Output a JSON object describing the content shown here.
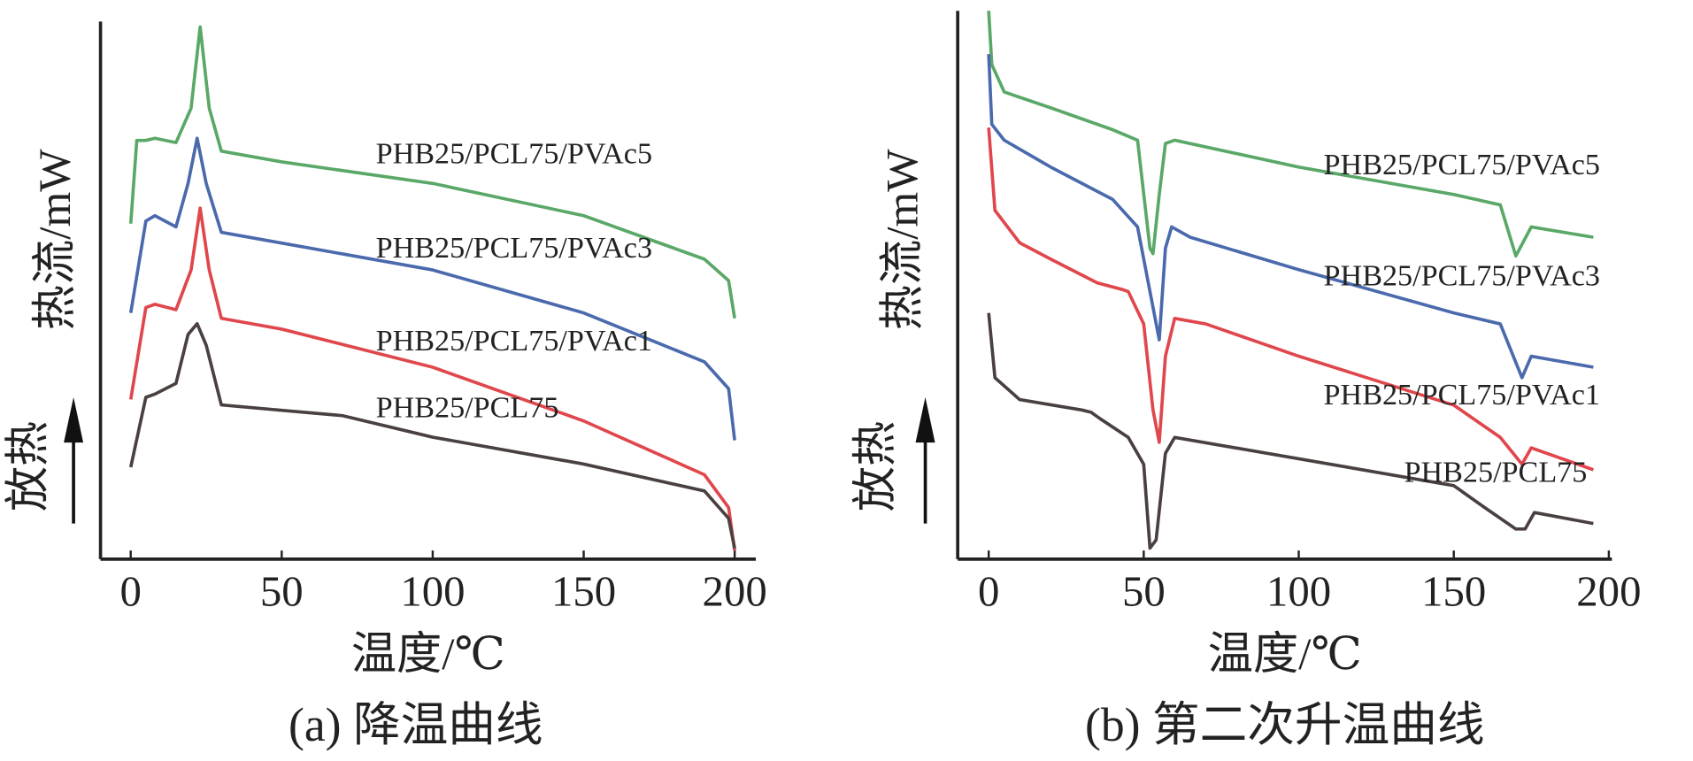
{
  "chart_data": [
    {
      "type": "line",
      "title": "(a) 降温曲线",
      "xlabel": "温度/℃",
      "ylabel": "热流/mW",
      "annotation": "放热",
      "xlim": [
        -10,
        207
      ],
      "ylim": [
        0,
        100
      ],
      "xticks": [
        0,
        50,
        100,
        150,
        200
      ],
      "series": [
        {
          "name": "PHB25/PCL75/PVAc5",
          "color": "#5aa867",
          "x": [
            0,
            2,
            5,
            8,
            15,
            20,
            23,
            26,
            30,
            50,
            100,
            150,
            190,
            198,
            200
          ],
          "values": [
            62.4,
            77.9,
            77.9,
            78.3,
            77.5,
            83.9,
            99.0,
            83.9,
            75.9,
            73.9,
            69.9,
            63.9,
            55.8,
            51.8,
            44.8
          ]
        },
        {
          "name": "PHB25/PCL75/PVAc3",
          "color": "#4a6aad",
          "x": [
            0,
            5,
            8,
            15,
            19,
            22,
            25,
            30,
            50,
            100,
            150,
            190,
            198,
            200
          ],
          "values": [
            45.8,
            62.9,
            63.9,
            61.8,
            69.9,
            78.3,
            69.9,
            60.8,
            58.8,
            53.8,
            45.8,
            36.7,
            31.7,
            22.1
          ]
        },
        {
          "name": "PHB25/PCL75/PVAc1",
          "color": "#e0474c",
          "x": [
            0,
            5,
            8,
            15,
            20,
            23,
            26,
            30,
            50,
            100,
            150,
            190,
            198,
            200
          ],
          "values": [
            29.7,
            46.8,
            47.4,
            46.4,
            53.8,
            65.3,
            53.8,
            44.8,
            42.8,
            35.7,
            25.7,
            15.7,
            9.6,
            1.6
          ]
        },
        {
          "name": "PHB25/PCL75",
          "color": "#4a4040",
          "x": [
            0,
            5,
            8,
            15,
            19,
            22,
            25,
            30,
            50,
            70,
            100,
            150,
            190,
            198,
            200
          ],
          "values": [
            17.1,
            30.1,
            30.7,
            32.7,
            41.8,
            43.8,
            39.8,
            28.7,
            27.7,
            26.7,
            22.7,
            17.7,
            12.7,
            7.6,
            2.0
          ]
        }
      ]
    },
    {
      "type": "line",
      "title": "(b) 第二次升温曲线",
      "xlabel": "温度/℃",
      "ylabel": "热流/mW",
      "annotation": "放热",
      "xlim": [
        -10,
        201
      ],
      "ylim": [
        0,
        100
      ],
      "xticks": [
        0,
        50,
        100,
        150,
        200
      ],
      "series": [
        {
          "name": "PHB25/PCL75/PVAc5",
          "color": "#5aa867",
          "x": [
            0,
            1,
            5,
            20,
            40,
            48,
            52,
            53,
            55,
            57,
            60,
            100,
            150,
            165,
            170,
            175,
            195
          ],
          "values": [
            100,
            90.2,
            85.2,
            82.3,
            78.3,
            76.4,
            56.7,
            55.7,
            66.5,
            75.8,
            76.4,
            71.5,
            66.5,
            64.6,
            55.3,
            60.6,
            58.7
          ]
        },
        {
          "name": "PHB25/PCL75/PVAc3",
          "color": "#4a6aad",
          "x": [
            0,
            1,
            5,
            20,
            40,
            48,
            52,
            55,
            57,
            59,
            65,
            100,
            150,
            165,
            172,
            175,
            195
          ],
          "values": [
            92.1,
            79.3,
            76.4,
            71.5,
            65.6,
            60.6,
            48.8,
            40.0,
            56.7,
            60.6,
            58.7,
            52.8,
            44.9,
            42.9,
            33.1,
            37.0,
            35.0
          ]
        },
        {
          "name": "PHB25/PCL75/PVAc1",
          "color": "#e0474c",
          "x": [
            0,
            2,
            10,
            20,
            35,
            43,
            45,
            50,
            53,
            55,
            57,
            60,
            70,
            100,
            150,
            165,
            172,
            175,
            195
          ],
          "values": [
            78.7,
            63.6,
            57.7,
            54.7,
            50.4,
            49.2,
            48.8,
            42.9,
            27.2,
            21.3,
            37.0,
            43.9,
            42.9,
            37.0,
            28.1,
            22.2,
            17.3,
            20.3,
            16.3
          ]
        },
        {
          "name": "PHB25/PCL75",
          "color": "#4a4040",
          "x": [
            0,
            2,
            10,
            30,
            33,
            36,
            45,
            50,
            52,
            54,
            57,
            60,
            100,
            150,
            160,
            170,
            173,
            176,
            195
          ],
          "values": [
            44.9,
            33.1,
            29.1,
            27.2,
            26.8,
            25.6,
            22.2,
            17.3,
            2.0,
            3.5,
            19.3,
            22.2,
            18.3,
            13.4,
            9.4,
            5.5,
            5.5,
            8.5,
            6.5
          ]
        }
      ]
    }
  ]
}
